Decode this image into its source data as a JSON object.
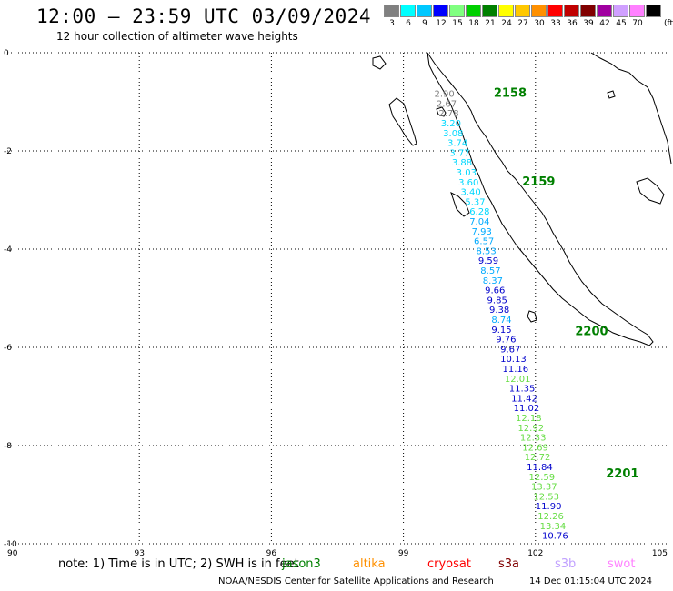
{
  "title": "12:00 – 23:59 UTC 03/09/2024",
  "subtitle": "12 hour collection of altimeter wave heights",
  "scale": {
    "unit": "(ft)",
    "bins": [
      {
        "label": "3",
        "color": "#808080"
      },
      {
        "label": "6",
        "color": "#00ffff"
      },
      {
        "label": "9",
        "color": "#00c8ff"
      },
      {
        "label": "12",
        "color": "#0000ff"
      },
      {
        "label": "15",
        "color": "#80ff80"
      },
      {
        "label": "18",
        "color": "#00d000"
      },
      {
        "label": "21",
        "color": "#008000"
      },
      {
        "label": "24",
        "color": "#ffff00"
      },
      {
        "label": "27",
        "color": "#ffc800"
      },
      {
        "label": "30",
        "color": "#ff9000"
      },
      {
        "label": "33",
        "color": "#ff0000"
      },
      {
        "label": "36",
        "color": "#c00000"
      },
      {
        "label": "39",
        "color": "#800000"
      },
      {
        "label": "42",
        "color": "#a000a0"
      },
      {
        "label": "45",
        "color": "#d0a0ff"
      },
      {
        "label": "70",
        "color": "#ff80ff"
      },
      {
        "label": "",
        "color": "#000000"
      }
    ]
  },
  "axes": {
    "lon_labels": [
      "90",
      "93",
      "96",
      "99",
      "102",
      "105"
    ],
    "lat_labels": [
      "0",
      "-2",
      "-4",
      "-6",
      "-8",
      "-10"
    ],
    "lon_values": [
      90,
      93,
      96,
      99,
      102,
      105
    ],
    "lat_values": [
      0,
      -2,
      -4,
      -6,
      -8,
      -10
    ]
  },
  "passes": [
    {
      "time": "2158",
      "lon": 101.05,
      "lat": -0.9
    },
    {
      "time": "2159",
      "lon": 101.7,
      "lat": -2.7
    },
    {
      "time": "2200",
      "lon": 102.9,
      "lat": -5.75
    },
    {
      "time": "2201",
      "lon": 103.6,
      "lat": -8.65
    }
  ],
  "wave_heights": [
    {
      "value": "2.90",
      "lon": 99.7,
      "lat": -0.9,
      "color": "#808080"
    },
    {
      "value": "2.67",
      "lon": 99.75,
      "lat": -1.1,
      "color": "#808080"
    },
    {
      "value": "2.78",
      "lon": 99.8,
      "lat": -1.3,
      "color": "#808080"
    },
    {
      "value": "3.20",
      "lon": 99.85,
      "lat": -1.5,
      "color": "#00d8ff"
    },
    {
      "value": "3.08",
      "lon": 99.9,
      "lat": -1.7,
      "color": "#00d8ff"
    },
    {
      "value": "3.74",
      "lon": 100.0,
      "lat": -1.9,
      "color": "#00d8ff"
    },
    {
      "value": "3.77",
      "lon": 100.05,
      "lat": -2.1,
      "color": "#00d8ff"
    },
    {
      "value": "3.88",
      "lon": 100.1,
      "lat": -2.3,
      "color": "#00d8ff"
    },
    {
      "value": "3.03",
      "lon": 100.2,
      "lat": -2.5,
      "color": "#00d8ff"
    },
    {
      "value": "3.60",
      "lon": 100.25,
      "lat": -2.7,
      "color": "#00d8ff"
    },
    {
      "value": "3.40",
      "lon": 100.3,
      "lat": -2.9,
      "color": "#00d8ff"
    },
    {
      "value": "5.37",
      "lon": 100.4,
      "lat": -3.1,
      "color": "#00d8ff"
    },
    {
      "value": "6.28",
      "lon": 100.5,
      "lat": -3.3,
      "color": "#00d8ff"
    },
    {
      "value": "7.04",
      "lon": 100.5,
      "lat": -3.5,
      "color": "#00aaff"
    },
    {
      "value": "7.93",
      "lon": 100.55,
      "lat": -3.7,
      "color": "#00aaff"
    },
    {
      "value": "6.57",
      "lon": 100.6,
      "lat": -3.9,
      "color": "#00aaff"
    },
    {
      "value": "8.53",
      "lon": 100.65,
      "lat": -4.1,
      "color": "#00aaff"
    },
    {
      "value": "9.59",
      "lon": 100.7,
      "lat": -4.3,
      "color": "#0000cc"
    },
    {
      "value": "8.57",
      "lon": 100.75,
      "lat": -4.5,
      "color": "#00aaff"
    },
    {
      "value": "8.37",
      "lon": 100.8,
      "lat": -4.7,
      "color": "#00aaff"
    },
    {
      "value": "9.66",
      "lon": 100.85,
      "lat": -4.9,
      "color": "#0000cc"
    },
    {
      "value": "9.85",
      "lon": 100.9,
      "lat": -5.1,
      "color": "#0000cc"
    },
    {
      "value": "9.38",
      "lon": 100.95,
      "lat": -5.3,
      "color": "#0000cc"
    },
    {
      "value": "8.74",
      "lon": 101.0,
      "lat": -5.5,
      "color": "#00aaff"
    },
    {
      "value": "9.15",
      "lon": 101.0,
      "lat": -5.7,
      "color": "#0000cc"
    },
    {
      "value": "9.76",
      "lon": 101.1,
      "lat": -5.9,
      "color": "#0000cc"
    },
    {
      "value": "9.67",
      "lon": 101.2,
      "lat": -6.1,
      "color": "#0000cc"
    },
    {
      "value": "10.13",
      "lon": 101.2,
      "lat": -6.3,
      "color": "#0000cc"
    },
    {
      "value": "11.16",
      "lon": 101.25,
      "lat": -6.5,
      "color": "#0000cc"
    },
    {
      "value": "12.01",
      "lon": 101.3,
      "lat": -6.7,
      "color": "#66dd44"
    },
    {
      "value": "11.35",
      "lon": 101.4,
      "lat": -6.9,
      "color": "#0000cc"
    },
    {
      "value": "11.42",
      "lon": 101.45,
      "lat": -7.1,
      "color": "#0000cc"
    },
    {
      "value": "11.02",
      "lon": 101.5,
      "lat": -7.3,
      "color": "#0000cc"
    },
    {
      "value": "12.18",
      "lon": 101.55,
      "lat": -7.5,
      "color": "#66dd44"
    },
    {
      "value": "12.92",
      "lon": 101.6,
      "lat": -7.7,
      "color": "#66dd44"
    },
    {
      "value": "12.33",
      "lon": 101.65,
      "lat": -7.9,
      "color": "#66dd44"
    },
    {
      "value": "12.69",
      "lon": 101.7,
      "lat": -8.1,
      "color": "#66dd44"
    },
    {
      "value": "12.72",
      "lon": 101.75,
      "lat": -8.3,
      "color": "#66dd44"
    },
    {
      "value": "11.84",
      "lon": 101.8,
      "lat": -8.5,
      "color": "#0000cc"
    },
    {
      "value": "12.59",
      "lon": 101.85,
      "lat": -8.7,
      "color": "#66dd44"
    },
    {
      "value": "13.37",
      "lon": 101.9,
      "lat": -8.9,
      "color": "#66dd44"
    },
    {
      "value": "12.53",
      "lon": 101.95,
      "lat": -9.1,
      "color": "#66dd44"
    },
    {
      "value": "11.90",
      "lon": 102.0,
      "lat": -9.3,
      "color": "#0000cc"
    },
    {
      "value": "12.26",
      "lon": 102.05,
      "lat": -9.5,
      "color": "#66dd44"
    },
    {
      "value": "13.34",
      "lon": 102.1,
      "lat": -9.7,
      "color": "#66dd44"
    },
    {
      "value": "10.76",
      "lon": 102.15,
      "lat": -9.9,
      "color": "#0000cc"
    }
  ],
  "note": {
    "prefix": "note:  1) Time is in UTC;  2) SWH is in feet"
  },
  "satellites": [
    {
      "name": "jason3",
      "color": "#008000"
    },
    {
      "name": "altika",
      "color": "#ff9000"
    },
    {
      "name": "cryosat",
      "color": "#ff0000"
    },
    {
      "name": "s3a",
      "color": "#800000"
    },
    {
      "name": "s3b",
      "color": "#c0a0ff"
    },
    {
      "name": "swot",
      "color": "#ff80ff"
    }
  ],
  "footer": {
    "org": "NOAA/NESDIS Center for Satellite Applications and Research",
    "timestamp": "14 Dec 01:15:04 UTC 2024"
  }
}
